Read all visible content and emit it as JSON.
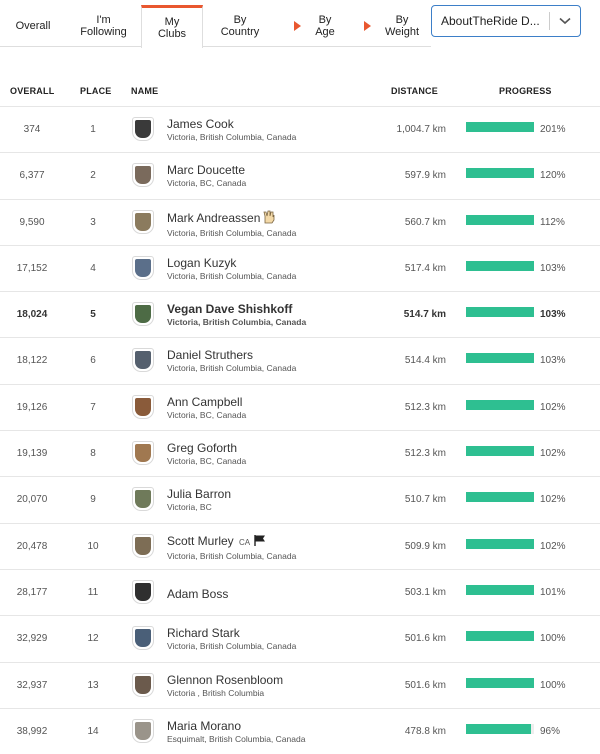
{
  "tabs": [
    {
      "label": "Overall",
      "has_arrow": false
    },
    {
      "label": "I'm\nFollowing",
      "has_arrow": false
    },
    {
      "label": "My\nClubs",
      "has_arrow": false,
      "active": true
    },
    {
      "label": "By\nCountry",
      "has_arrow": false
    },
    {
      "label": "By\nAge",
      "has_arrow": true
    },
    {
      "label": "By\nWeight",
      "has_arrow": true
    }
  ],
  "club_select": {
    "value": "AboutTheRide D...",
    "icon": "chevron-down-icon"
  },
  "columns": {
    "overall": "OVERALL",
    "place": "PLACE",
    "name": "NAME",
    "distance": "DISTANCE",
    "progress": "PROGRESS"
  },
  "accent_color": "#e9572f",
  "progress_color": "#2ebf91",
  "rows": [
    {
      "overall": "374",
      "place": "1",
      "name": "James Cook",
      "location": "Victoria, British Columbia, Canada",
      "distance": "1,004.7 km",
      "progress": "201%",
      "progress_fraction": 1.0,
      "avatar_color": "#3a3a3a"
    },
    {
      "overall": "6,377",
      "place": "2",
      "name": "Marc Doucette",
      "location": "Victoria, BC, Canada",
      "distance": "597.9 km",
      "progress": "120%",
      "progress_fraction": 1.0,
      "avatar_color": "#7a6a5c"
    },
    {
      "overall": "9,590",
      "place": "3",
      "name": "Mark Andreassen",
      "location": "Victoria, British Columbia, Canada",
      "distance": "560.7 km",
      "progress": "112%",
      "progress_fraction": 1.0,
      "avatar_color": "#8b7b5e",
      "extra_icon": "raised-hands-icon"
    },
    {
      "overall": "17,152",
      "place": "4",
      "name": "Logan Kuzyk",
      "location": "Victoria, British Columbia, Canada",
      "distance": "517.4 km",
      "progress": "103%",
      "progress_fraction": 1.0,
      "avatar_color": "#5b6f8a"
    },
    {
      "overall": "18,024",
      "place": "5",
      "name": "Vegan Dave Shishkoff",
      "location": "Victoria, British Columbia, Canada",
      "distance": "514.7 km",
      "progress": "103%",
      "progress_fraction": 1.0,
      "avatar_color": "#4d6b45",
      "highlight": true
    },
    {
      "overall": "18,122",
      "place": "6",
      "name": "Daniel Struthers",
      "location": "Victoria, British Columbia, Canada",
      "distance": "514.4 km",
      "progress": "103%",
      "progress_fraction": 1.0,
      "avatar_color": "#55606e"
    },
    {
      "overall": "19,126",
      "place": "7",
      "name": "Ann Campbell",
      "location": "Victoria, BC, Canada",
      "distance": "512.3 km",
      "progress": "102%",
      "progress_fraction": 1.0,
      "avatar_color": "#8a5b3a"
    },
    {
      "overall": "19,139",
      "place": "8",
      "name": "Greg Goforth",
      "location": "Victoria, BC, Canada",
      "distance": "512.3 km",
      "progress": "102%",
      "progress_fraction": 1.0,
      "avatar_color": "#a07850"
    },
    {
      "overall": "20,070",
      "place": "9",
      "name": "Julia Barron",
      "location": "Victoria, BC",
      "distance": "510.7 km",
      "progress": "102%",
      "progress_fraction": 1.0,
      "avatar_color": "#6f7a5a"
    },
    {
      "overall": "20,478",
      "place": "10",
      "name": "Scott Murley",
      "badge": "CA",
      "location": "Victoria, British Columbia, Canada",
      "distance": "509.9 km",
      "progress": "102%",
      "progress_fraction": 1.0,
      "avatar_color": "#7d6d55",
      "extra_icon": "flag-icon"
    },
    {
      "overall": "28,177",
      "place": "11",
      "name": "Adam Boss",
      "location": "",
      "distance": "503.1 km",
      "progress": "101%",
      "progress_fraction": 1.0,
      "avatar_color": "#2f2f2f"
    },
    {
      "overall": "32,929",
      "place": "12",
      "name": "Richard Stark",
      "location": "Victoria, British Columbia, Canada",
      "distance": "501.6 km",
      "progress": "100%",
      "progress_fraction": 1.0,
      "avatar_color": "#4a5f78"
    },
    {
      "overall": "32,937",
      "place": "13",
      "name": "Glennon Rosenbloom",
      "location": "Victoria , British Columbia",
      "distance": "501.6 km",
      "progress": "100%",
      "progress_fraction": 1.0,
      "avatar_color": "#6b5a4c"
    },
    {
      "overall": "38,992",
      "place": "14",
      "name": "Maria Morano",
      "location": "Esquimalt, British Columbia, Canada",
      "distance": "478.8 km",
      "progress": "96%",
      "progress_fraction": 0.96,
      "avatar_color": "#9a948a"
    }
  ]
}
